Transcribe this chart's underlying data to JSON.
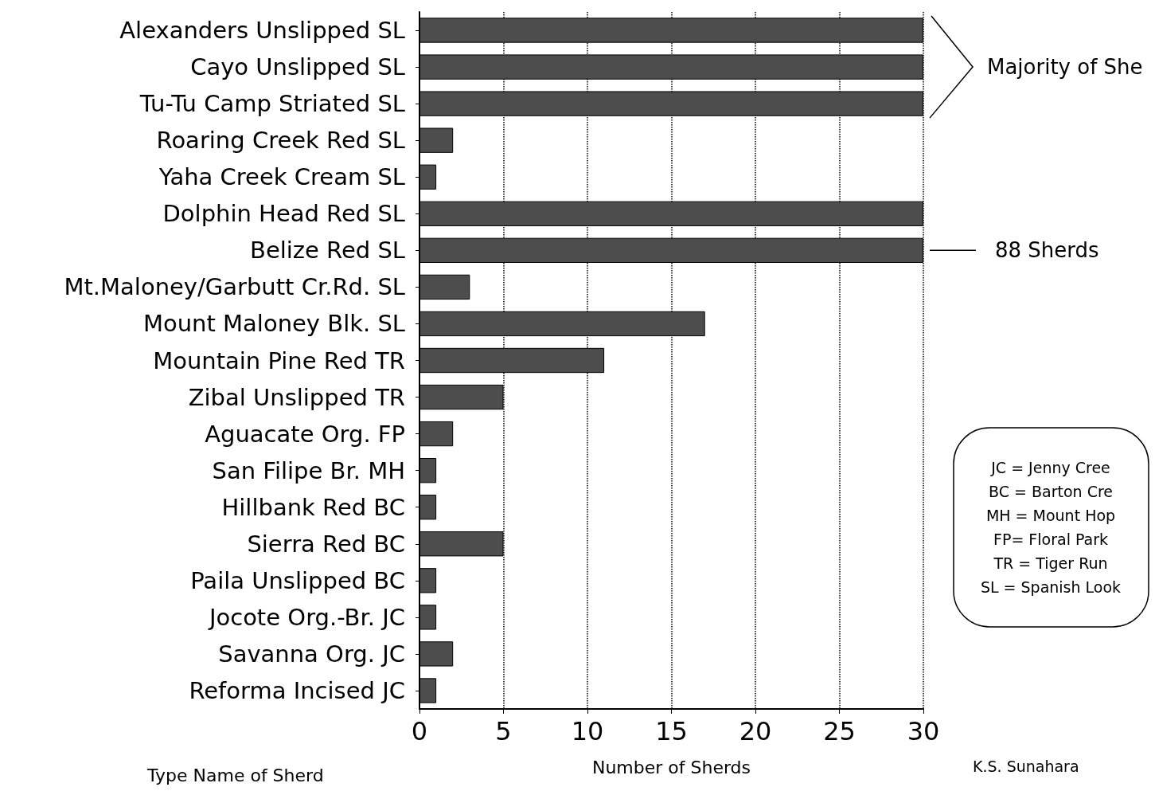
{
  "chart_data": {
    "type": "bar",
    "orientation": "horizontal",
    "categories": [
      "Alexanders Unslipped SL",
      "Cayo Unslipped SL",
      "Tu-Tu Camp Striated SL",
      "Roaring Creek Red SL",
      "Yaha Creek Cream SL",
      "Dolphin Head Red SL",
      "Belize Red SL",
      "Mt.Maloney/Garbutt Cr.Rd. SL",
      "Mount Maloney Blk. SL",
      "Mountain Pine Red TR",
      "Zibal Unslipped TR",
      "Aguacate Org. FP",
      "San Filipe Br. MH",
      "Hillbank Red BC",
      "Sierra Red BC",
      "Paila Unslipped BC",
      "Jocote Org.-Br. JC",
      "Savanna Org. JC",
      "Reforma Incised JC"
    ],
    "values": [
      30,
      30,
      30,
      2,
      1,
      30,
      30,
      3,
      17,
      11,
      5,
      2,
      1,
      1,
      5,
      1,
      1,
      2,
      1
    ],
    "color": "#4d4d4d",
    "xlim": [
      0,
      30
    ],
    "xticks": [
      0,
      5,
      10,
      15,
      20,
      25,
      30
    ],
    "xlabel": "Number of Sherds",
    "ylabel": "Type Name of Sherd",
    "grid": "x",
    "annotations": [
      "Majority of She",
      "88 Sherds",
      "JC = Jenny Cree\nBC = Barton Cre\nMH = Mount Hop\nFP= Floral Park\nTR = Tiger Run\nSL = Spanish Look",
      "K.S. Sunahara"
    ]
  }
}
